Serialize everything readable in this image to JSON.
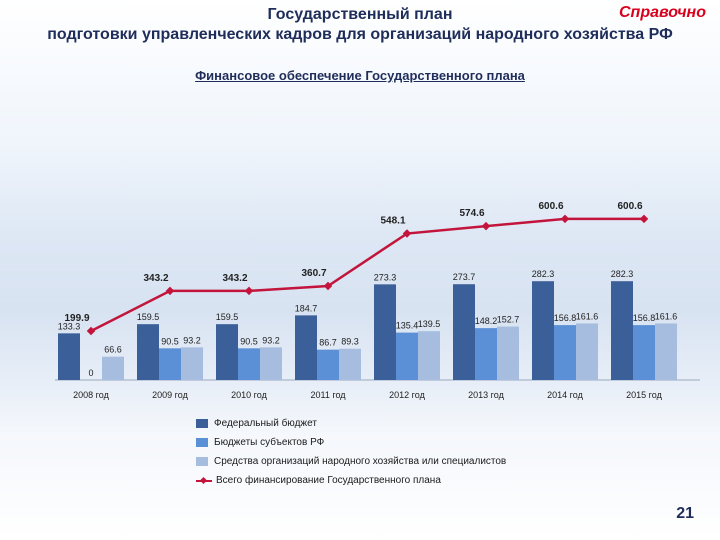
{
  "header": {
    "tag": "Справочно",
    "title_line1": "Государственный план",
    "title_line2": "подготовки управленческих кадров для организаций народного хозяйства РФ",
    "subtitle": "Финансовое обеспечение Государственного плана"
  },
  "page_number": "21",
  "colors": {
    "federal": "#3b5f98",
    "regional": "#5b8fd6",
    "orgs": "#a6bde0",
    "total_line": "#c3143c"
  },
  "chart_data": {
    "type": "bar",
    "categories": [
      "2008 год",
      "2009 год",
      "2010 год",
      "2011 год",
      "2012 год",
      "2013 год",
      "2014 год",
      "2015 год"
    ],
    "series": [
      {
        "name": "Федеральный бюджет",
        "values": [
          133.3,
          159.5,
          159.5,
          184.7,
          273.3,
          273.7,
          282.3,
          282.3
        ]
      },
      {
        "name": "Бюджеты субъектов РФ",
        "values": [
          0,
          90.5,
          90.5,
          86.7,
          135.4,
          148.2,
          156.8,
          156.8
        ]
      },
      {
        "name": "Средства организаций народного хозяйства или специалистов",
        "values": [
          66.6,
          93.2,
          93.2,
          89.3,
          139.5,
          152.7,
          161.6,
          161.6
        ]
      }
    ],
    "line": {
      "name": "Всего финансирование Государственного плана",
      "values": [
        199.9,
        343.2,
        343.2,
        360.7,
        548.1,
        574.6,
        600.6,
        600.6
      ]
    },
    "bar_labels": [
      [
        "133.3",
        "0",
        "66.6"
      ],
      [
        "159.5",
        "90.5",
        "93.2"
      ],
      [
        "159.5",
        "90.5",
        "93.2"
      ],
      [
        "184.7",
        "86.7",
        "89.3"
      ],
      [
        "273.3",
        "135.4",
        "139.5"
      ],
      [
        "273.7",
        "148.2",
        "152.7"
      ],
      [
        "282.3",
        "156.8",
        "161.6"
      ],
      [
        "282.3",
        "156.8",
        "161.6"
      ]
    ],
    "line_labels": [
      "199.9",
      "343.2",
      "343.2",
      "360.7",
      "548.1",
      "574.6",
      "600.6",
      "600.6"
    ],
    "legend_position": "bottom",
    "grid": false
  }
}
